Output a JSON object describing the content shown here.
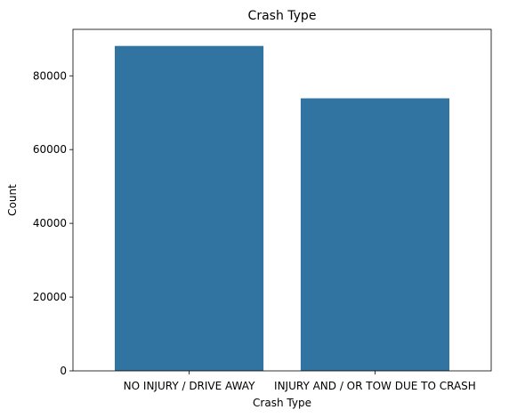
{
  "chart_data": {
    "type": "bar",
    "title": "Crash Type",
    "xlabel": "Crash Type",
    "ylabel": "Count",
    "categories": [
      "NO INJURY / DRIVE AWAY",
      "INJURY AND / OR TOW DUE TO CRASH"
    ],
    "values": [
      88100,
      73900
    ],
    "ylim": [
      0,
      92600
    ],
    "yticks": [
      0,
      20000,
      40000,
      60000,
      80000
    ],
    "ytick_labels": [
      "0",
      "20000",
      "40000",
      "60000",
      "80000"
    ],
    "bar_color": "#3274a1",
    "grid": false,
    "legend": "none"
  }
}
